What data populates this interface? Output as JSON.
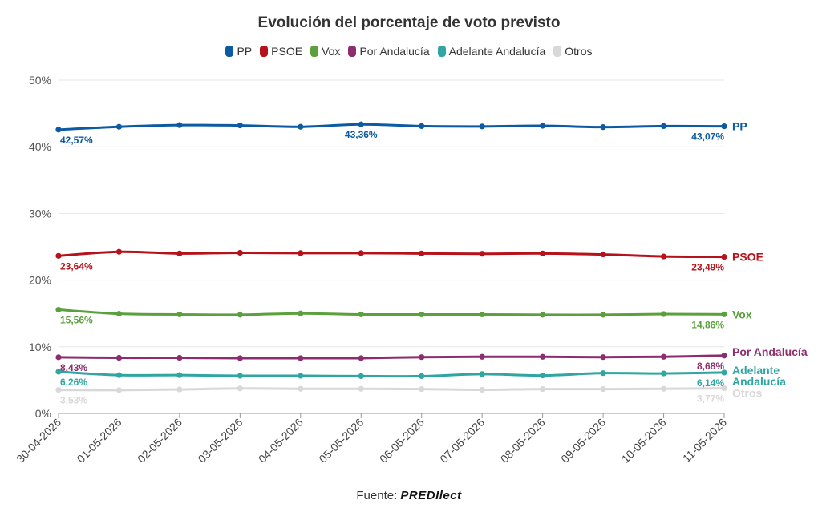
{
  "chart_data": {
    "type": "line",
    "title": "Evolución del porcentaje de voto previsto",
    "xlabel": "",
    "ylabel": "",
    "ylim": [
      0,
      50
    ],
    "yticks": [
      "0%",
      "10%",
      "20%",
      "30%",
      "40%",
      "50%"
    ],
    "grid": true,
    "legend_position": "top",
    "categories": [
      "30-04-2026",
      "01-05-2026",
      "02-05-2026",
      "03-05-2026",
      "04-05-2026",
      "05-05-2026",
      "06-05-2026",
      "07-05-2026",
      "08-05-2026",
      "09-05-2026",
      "10-05-2026",
      "11-05-2026"
    ],
    "series": [
      {
        "name": "PP",
        "end_label": "PP",
        "color": "#0b5aa2",
        "values": [
          42.57,
          43.0,
          43.25,
          43.2,
          43.0,
          43.36,
          43.1,
          43.05,
          43.15,
          42.95,
          43.1,
          43.07
        ],
        "annotations": [
          {
            "index": 0,
            "text": "42,57%"
          },
          {
            "index": 5,
            "text": "43,36%"
          },
          {
            "index": 11,
            "text": "43,07%"
          }
        ]
      },
      {
        "name": "PSOE",
        "end_label": "PSOE",
        "color": "#b5121b",
        "values": [
          23.64,
          24.25,
          24.0,
          24.1,
          24.05,
          24.05,
          24.0,
          23.95,
          24.0,
          23.85,
          23.55,
          23.49
        ],
        "annotations": [
          {
            "index": 0,
            "text": "23,64%"
          },
          {
            "index": 11,
            "text": "23,49%"
          }
        ]
      },
      {
        "name": "Vox",
        "end_label": "Vox",
        "color": "#5aa03c",
        "values": [
          15.56,
          14.95,
          14.85,
          14.8,
          15.0,
          14.85,
          14.85,
          14.85,
          14.8,
          14.8,
          14.9,
          14.86
        ],
        "annotations": [
          {
            "index": 0,
            "text": "15,56%"
          },
          {
            "index": 11,
            "text": "14,86%"
          }
        ]
      },
      {
        "name": "Por Andalucía",
        "end_label": "Por Andalucía",
        "color": "#8c2e6e",
        "values": [
          8.43,
          8.35,
          8.35,
          8.3,
          8.3,
          8.3,
          8.45,
          8.5,
          8.5,
          8.45,
          8.5,
          8.68
        ],
        "annotations": [
          {
            "index": 0,
            "text": "8,43%"
          },
          {
            "index": 11,
            "text": "8,68%"
          }
        ]
      },
      {
        "name": "Adelante Andalucía",
        "end_label": "Adelante Andalucía",
        "color": "#2fa6a0",
        "values": [
          6.26,
          5.75,
          5.75,
          5.65,
          5.65,
          5.6,
          5.6,
          5.9,
          5.7,
          6.05,
          6.0,
          6.14
        ],
        "annotations": [
          {
            "index": 0,
            "text": "6,26%"
          },
          {
            "index": 11,
            "text": "6,14%"
          }
        ]
      },
      {
        "name": "Otros",
        "end_label": "Otros",
        "color": "#d8d8d8",
        "values": [
          3.53,
          3.5,
          3.6,
          3.75,
          3.7,
          3.7,
          3.65,
          3.55,
          3.65,
          3.65,
          3.7,
          3.77
        ],
        "annotations": [
          {
            "index": 0,
            "text": "3,53%"
          },
          {
            "index": 11,
            "text": "3,77%"
          }
        ]
      }
    ]
  },
  "footer": {
    "prefix": "Fuente:",
    "brand": "PREDIlect"
  }
}
